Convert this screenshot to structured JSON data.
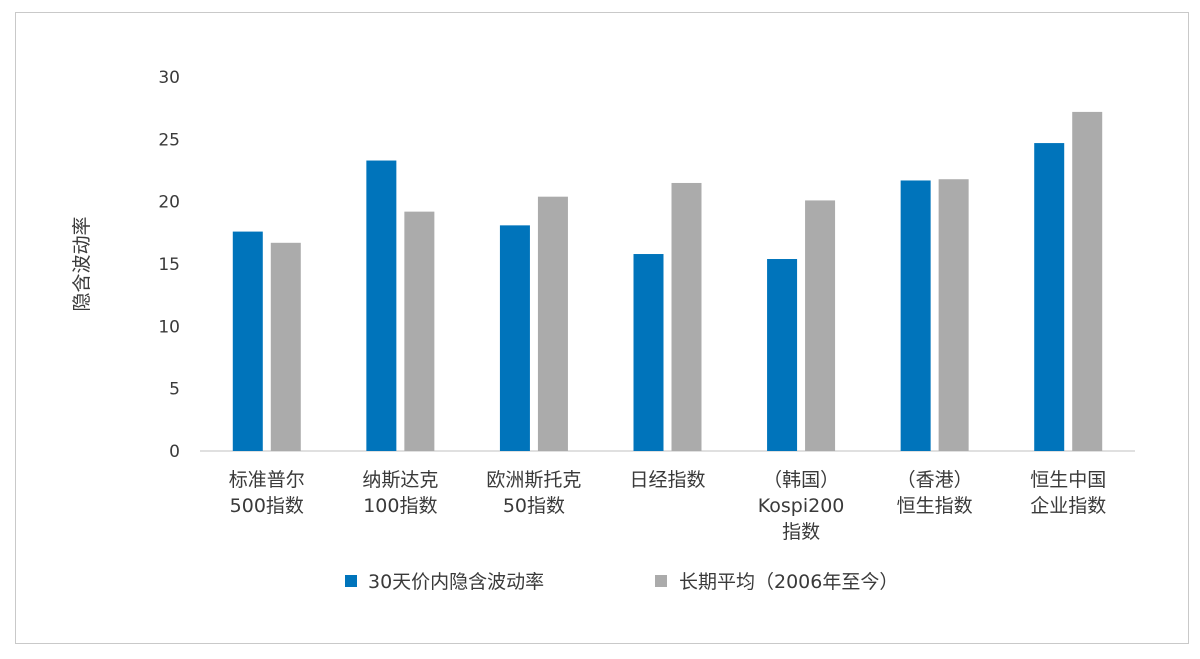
{
  "chart_data": {
    "type": "bar",
    "title": "",
    "xlabel": "",
    "ylabel": "隐含波动率",
    "ylim": [
      0,
      30
    ],
    "yticks": [
      0,
      5,
      10,
      15,
      20,
      25,
      30
    ],
    "grid": false,
    "legend_position": "bottom",
    "categories": [
      [
        "标准普尔",
        "500指数"
      ],
      [
        "纳斯达克",
        "100指数"
      ],
      [
        "欧洲斯托克",
        "50指数"
      ],
      [
        "日经指数"
      ],
      [
        "（韩国）",
        "Kospi200",
        "指数"
      ],
      [
        "（香港）",
        "恒生指数"
      ],
      [
        "恒生中国",
        "企业指数"
      ]
    ],
    "series": [
      {
        "name": "30天价内隐含波动率",
        "color": "#0074bb",
        "values": [
          17.6,
          23.3,
          18.1,
          15.8,
          15.4,
          21.7,
          24.7
        ]
      },
      {
        "name": "长期平均（2006年至今）",
        "color": "#ababab",
        "values": [
          16.7,
          19.2,
          20.4,
          21.5,
          20.1,
          21.8,
          27.2
        ]
      }
    ]
  }
}
